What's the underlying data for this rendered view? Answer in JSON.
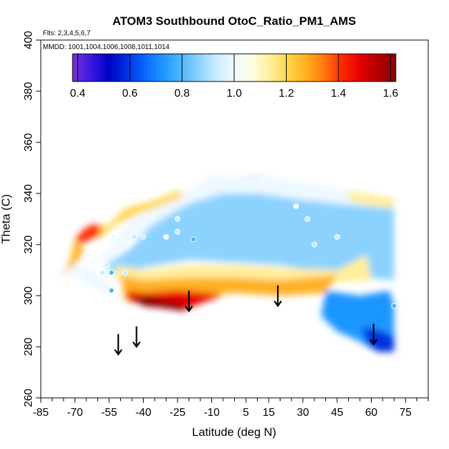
{
  "chart_data": {
    "type": "heatmap",
    "title": "ATOM3 Southbound OtoC_Ratio_PM1_AMS",
    "flights_text": "Flts: 2,3,4,5,6,7",
    "mmdd_text": "MMDD: 1001,1004,1006,1008,1011,1014",
    "xlabel": "Latitude (deg N)",
    "ylabel": "Theta (C)",
    "xlim": [
      -85,
      85
    ],
    "ylim": [
      260,
      400
    ],
    "x_tick_labels": [
      "-85",
      "-70",
      "-55",
      "-40",
      "-25",
      "-10",
      "5",
      "15",
      "30",
      "45",
      "60",
      "75"
    ],
    "x_ticks": [
      -85,
      -70,
      -55,
      -40,
      -25,
      -10,
      5,
      15,
      30,
      45,
      60,
      75
    ],
    "x_minor_ticks": [
      -80,
      -75,
      -65,
      -60,
      -50,
      -45,
      -35,
      -30,
      -20,
      -15,
      -5,
      0,
      10,
      20,
      25,
      35,
      40,
      50,
      55,
      65,
      70,
      80,
      85
    ],
    "y_tick_labels": [
      "260",
      "280",
      "300",
      "320",
      "340",
      "360",
      "380",
      "400"
    ],
    "y_ticks": [
      260,
      280,
      300,
      320,
      340,
      360,
      380,
      400
    ],
    "colorbar": {
      "min": 0.38,
      "max": 1.62,
      "tick_labels": [
        "0.4",
        "0.6",
        "0.8",
        "1.0",
        "1.2",
        "1.4",
        "1.6"
      ],
      "ticks": [
        0.4,
        0.6,
        0.8,
        1.0,
        1.2,
        1.4,
        1.6
      ],
      "colors": [
        "#7b2fd6",
        "#3a1ae0",
        "#0000c8",
        "#0030e0",
        "#0a64ff",
        "#1e96ff",
        "#4ab4ff",
        "#8cd2ff",
        "#c8ebff",
        "#eef8ff",
        "#fffde0",
        "#ffee9a",
        "#ffd54a",
        "#ffb020",
        "#ff7a10",
        "#ff2a00",
        "#e60000",
        "#b40000",
        "#8a0000"
      ]
    },
    "regions": [
      {
        "name": "main-blue-field",
        "value": 0.88,
        "polygon": [
          [
            -57,
            312
          ],
          [
            -46,
            318
          ],
          [
            -38,
            326
          ],
          [
            -30,
            332
          ],
          [
            -20,
            340
          ],
          [
            -10,
            347
          ],
          [
            10,
            347
          ],
          [
            25,
            344
          ],
          [
            40,
            341
          ],
          [
            55,
            340
          ],
          [
            70,
            337
          ],
          [
            70,
            306
          ],
          [
            45,
            308
          ],
          [
            20,
            312
          ],
          [
            0,
            313
          ],
          [
            -20,
            314
          ],
          [
            -40,
            311
          ],
          [
            -52,
            308
          ]
        ]
      },
      {
        "name": "upper-light-band",
        "value": 1.03,
        "polygon": [
          [
            -68,
            308
          ],
          [
            -55,
            318
          ],
          [
            -45,
            330
          ],
          [
            -35,
            334
          ],
          [
            -20,
            341
          ],
          [
            -10,
            347
          ],
          [
            5,
            347
          ],
          [
            25,
            345
          ],
          [
            45,
            342
          ],
          [
            70,
            338
          ],
          [
            70,
            334
          ],
          [
            45,
            336
          ],
          [
            25,
            338
          ],
          [
            10,
            340
          ],
          [
            -5,
            340
          ],
          [
            -20,
            336
          ],
          [
            -32,
            330
          ],
          [
            -45,
            322
          ],
          [
            -57,
            314
          ]
        ]
      },
      {
        "name": "upper-yellow-edge",
        "value": 1.18,
        "polygon": [
          [
            -62,
            326
          ],
          [
            -55,
            328
          ],
          [
            -48,
            334
          ],
          [
            -36,
            337
          ],
          [
            -30,
            339
          ],
          [
            -25,
            341
          ],
          [
            -22,
            339
          ],
          [
            -30,
            336
          ],
          [
            -42,
            332
          ],
          [
            -52,
            328
          ],
          [
            -60,
            322
          ]
        ]
      },
      {
        "name": "right-yellow-edge",
        "value": 1.15,
        "polygon": [
          [
            50,
            341
          ],
          [
            70,
            338
          ],
          [
            70,
            334
          ],
          [
            62,
            335
          ],
          [
            50,
            337
          ]
        ]
      },
      {
        "name": "left-red-edge",
        "value": 1.42,
        "polygon": [
          [
            -70,
            322
          ],
          [
            -66,
            326
          ],
          [
            -62,
            328
          ],
          [
            -58,
            327
          ],
          [
            -60,
            323
          ],
          [
            -64,
            322
          ],
          [
            -67,
            320
          ]
        ]
      },
      {
        "name": "left-orange-fringe",
        "value": 1.25,
        "polygon": [
          [
            -76,
            308
          ],
          [
            -72,
            314
          ],
          [
            -70,
            322
          ],
          [
            -66,
            318
          ],
          [
            -70,
            312
          ],
          [
            -73,
            308
          ]
        ]
      },
      {
        "name": "lower-warm-band",
        "value": 1.12,
        "polygon": [
          [
            -52,
            312
          ],
          [
            -40,
            310
          ],
          [
            -20,
            312
          ],
          [
            0,
            312
          ],
          [
            20,
            311
          ],
          [
            45,
            310
          ],
          [
            58,
            316
          ],
          [
            60,
            306
          ],
          [
            40,
            305
          ],
          [
            20,
            306
          ],
          [
            0,
            307
          ],
          [
            -20,
            307
          ],
          [
            -40,
            305
          ],
          [
            -52,
            306
          ]
        ]
      },
      {
        "name": "lower-orange-band",
        "value": 1.3,
        "polygon": [
          [
            -50,
            308
          ],
          [
            -40,
            306
          ],
          [
            -20,
            307
          ],
          [
            0,
            307
          ],
          [
            20,
            306
          ],
          [
            45,
            308
          ],
          [
            40,
            301
          ],
          [
            20,
            300
          ],
          [
            0,
            301
          ],
          [
            -15,
            300
          ],
          [
            -35,
            298
          ],
          [
            -48,
            298
          ]
        ]
      },
      {
        "name": "lower-red-core",
        "value": 1.5,
        "polygon": [
          [
            -47,
            302
          ],
          [
            -40,
            301
          ],
          [
            -25,
            302
          ],
          [
            -10,
            301
          ],
          [
            -5,
            300
          ],
          [
            -15,
            297
          ],
          [
            -23,
            294
          ],
          [
            -30,
            296
          ],
          [
            -40,
            297
          ],
          [
            -47,
            298
          ]
        ]
      },
      {
        "name": "dark-red-tip",
        "value": 1.62,
        "polygon": [
          [
            -45,
            299
          ],
          [
            -38,
            300
          ],
          [
            -30,
            298
          ],
          [
            -23,
            297
          ],
          [
            -22,
            294
          ],
          [
            -30,
            295
          ],
          [
            -40,
            296
          ]
        ]
      },
      {
        "name": "lower-right-blue",
        "value": 0.72,
        "polygon": [
          [
            40,
            302
          ],
          [
            55,
            300
          ],
          [
            68,
            302
          ],
          [
            70,
            296
          ],
          [
            70,
            278
          ],
          [
            63,
            278
          ],
          [
            55,
            282
          ],
          [
            45,
            286
          ],
          [
            38,
            292
          ]
        ]
      },
      {
        "name": "lower-right-deep-blue",
        "value": 0.6,
        "polygon": [
          [
            56,
            288
          ],
          [
            65,
            286
          ],
          [
            70,
            284
          ],
          [
            70,
            278
          ],
          [
            63,
            278
          ],
          [
            58,
            281
          ]
        ]
      },
      {
        "name": "left-light-tail",
        "value": 1.0,
        "polygon": [
          [
            -76,
            309
          ],
          [
            -70,
            312
          ],
          [
            -63,
            310
          ],
          [
            -55,
            306
          ],
          [
            -52,
            302
          ],
          [
            -55,
            300
          ],
          [
            -62,
            304
          ],
          [
            -70,
            307
          ]
        ]
      }
    ],
    "markers": [
      {
        "lat": -68,
        "theta": 308,
        "value": 1.0
      },
      {
        "lat": -65,
        "theta": 316,
        "value": 1.0
      },
      {
        "lat": -58,
        "theta": 309,
        "value": 0.9
      },
      {
        "lat": -56,
        "theta": 312,
        "value": 0.9
      },
      {
        "lat": -54,
        "theta": 309,
        "value": 0.8
      },
      {
        "lat": -54,
        "theta": 302,
        "value": 0.8
      },
      {
        "lat": -53,
        "theta": 323,
        "value": 1.0
      },
      {
        "lat": -48,
        "theta": 309,
        "value": 0.9
      },
      {
        "lat": -44,
        "theta": 323,
        "value": 0.9
      },
      {
        "lat": -40,
        "theta": 323,
        "value": 0.9
      },
      {
        "lat": -30,
        "theta": 323,
        "value": 1.0
      },
      {
        "lat": -25,
        "theta": 325,
        "value": 0.9
      },
      {
        "lat": -25,
        "theta": 330,
        "value": 0.9
      },
      {
        "lat": -18,
        "theta": 322,
        "value": 0.8
      },
      {
        "lat": 12,
        "theta": 345,
        "value": 1.0
      },
      {
        "lat": 27,
        "theta": 335,
        "value": 1.0
      },
      {
        "lat": 32,
        "theta": 330,
        "value": 0.9
      },
      {
        "lat": 35,
        "theta": 320,
        "value": 0.9
      },
      {
        "lat": 45,
        "theta": 323,
        "value": 0.9
      },
      {
        "lat": 70,
        "theta": 296,
        "value": 0.8
      }
    ],
    "arrows": [
      {
        "lat": -51,
        "theta_top": 285,
        "theta_bottom": 277
      },
      {
        "lat": -43,
        "theta_top": 288,
        "theta_bottom": 280
      },
      {
        "lat": -20,
        "theta_top": 302,
        "theta_bottom": 294
      },
      {
        "lat": 19,
        "theta_top": 304,
        "theta_bottom": 296
      },
      {
        "lat": 61,
        "theta_top": 289,
        "theta_bottom": 281
      }
    ]
  }
}
